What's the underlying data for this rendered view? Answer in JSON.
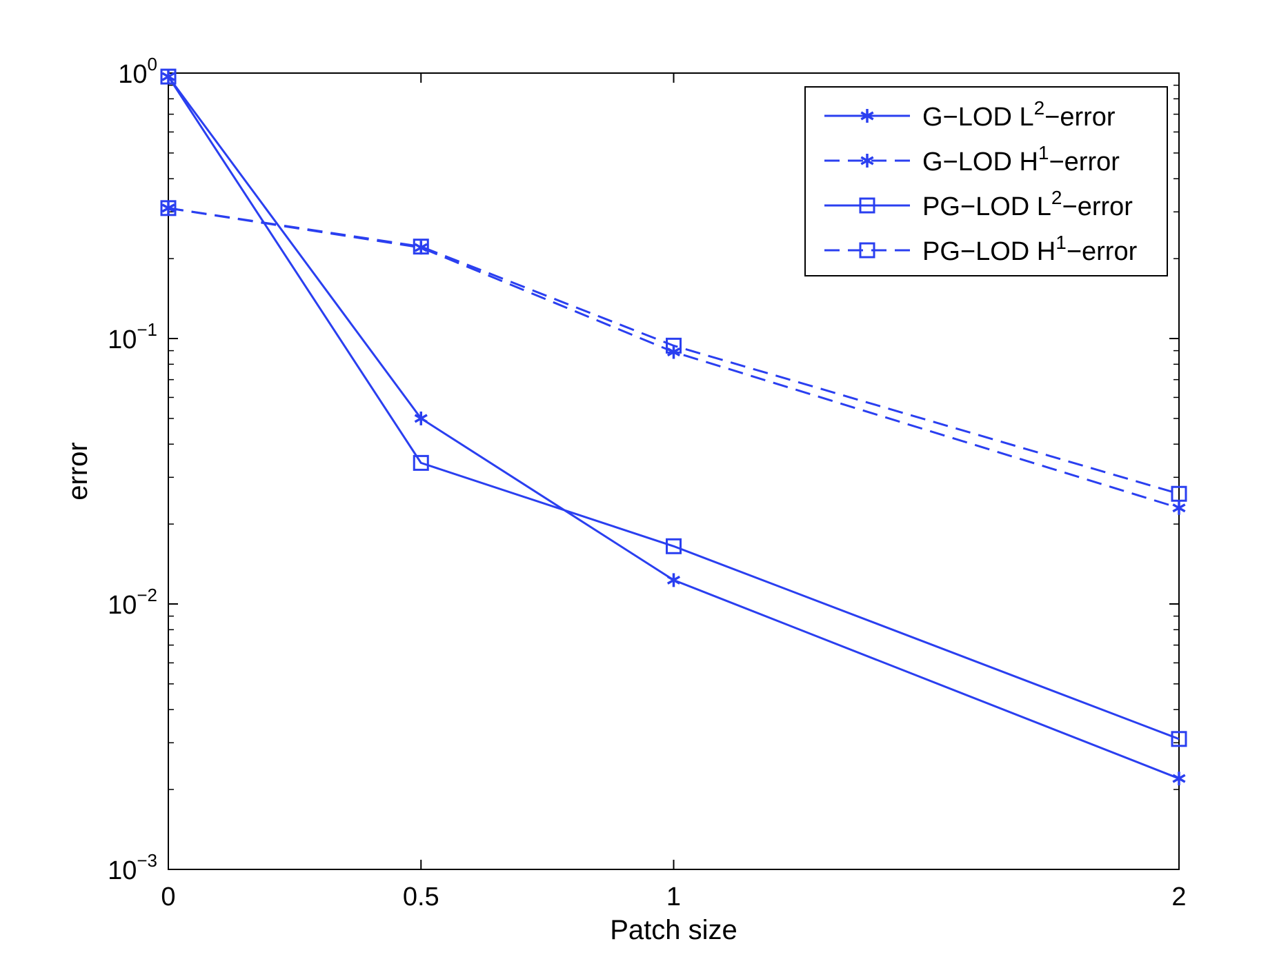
{
  "chart_data": {
    "type": "line",
    "title": "",
    "xlabel": "Patch size",
    "ylabel": "error",
    "yscale": "log",
    "xlim": [
      0,
      2
    ],
    "ylim": [
      0.001,
      1
    ],
    "grid": false,
    "legend_position": "top-right",
    "color": "#2a3ff0",
    "x": [
      0,
      0.5,
      1,
      2
    ],
    "x_ticks": [
      "0",
      "0.5",
      "1",
      "2"
    ],
    "y_ticks": [
      {
        "value": 1,
        "base": "10",
        "exp": "0"
      },
      {
        "value": 0.1,
        "base": "10",
        "exp": "−1"
      },
      {
        "value": 0.01,
        "base": "10",
        "exp": "−2"
      },
      {
        "value": 0.001,
        "base": "10",
        "exp": "−3"
      }
    ],
    "series": [
      {
        "name": "G−LOD L²−error",
        "label_main": "G−LOD L",
        "label_sup": "2",
        "label_tail": "−error",
        "style": "solid",
        "marker": "star",
        "values": [
          0.97,
          0.05,
          0.0123,
          0.0022
        ]
      },
      {
        "name": "G−LOD H¹−error",
        "label_main": "G−LOD H",
        "label_sup": "1",
        "label_tail": "−error",
        "style": "dashed",
        "marker": "star",
        "values": [
          0.31,
          0.22,
          0.089,
          0.023
        ]
      },
      {
        "name": "PG−LOD L²−error",
        "label_main": "PG−LOD L",
        "label_sup": "2",
        "label_tail": "−error",
        "style": "solid",
        "marker": "square",
        "values": [
          0.97,
          0.034,
          0.0165,
          0.0031
        ]
      },
      {
        "name": "PG−LOD H¹−error",
        "label_main": "PG−LOD H",
        "label_sup": "1",
        "label_tail": "−error",
        "style": "dashed",
        "marker": "square",
        "values": [
          0.31,
          0.222,
          0.094,
          0.026
        ]
      }
    ]
  }
}
